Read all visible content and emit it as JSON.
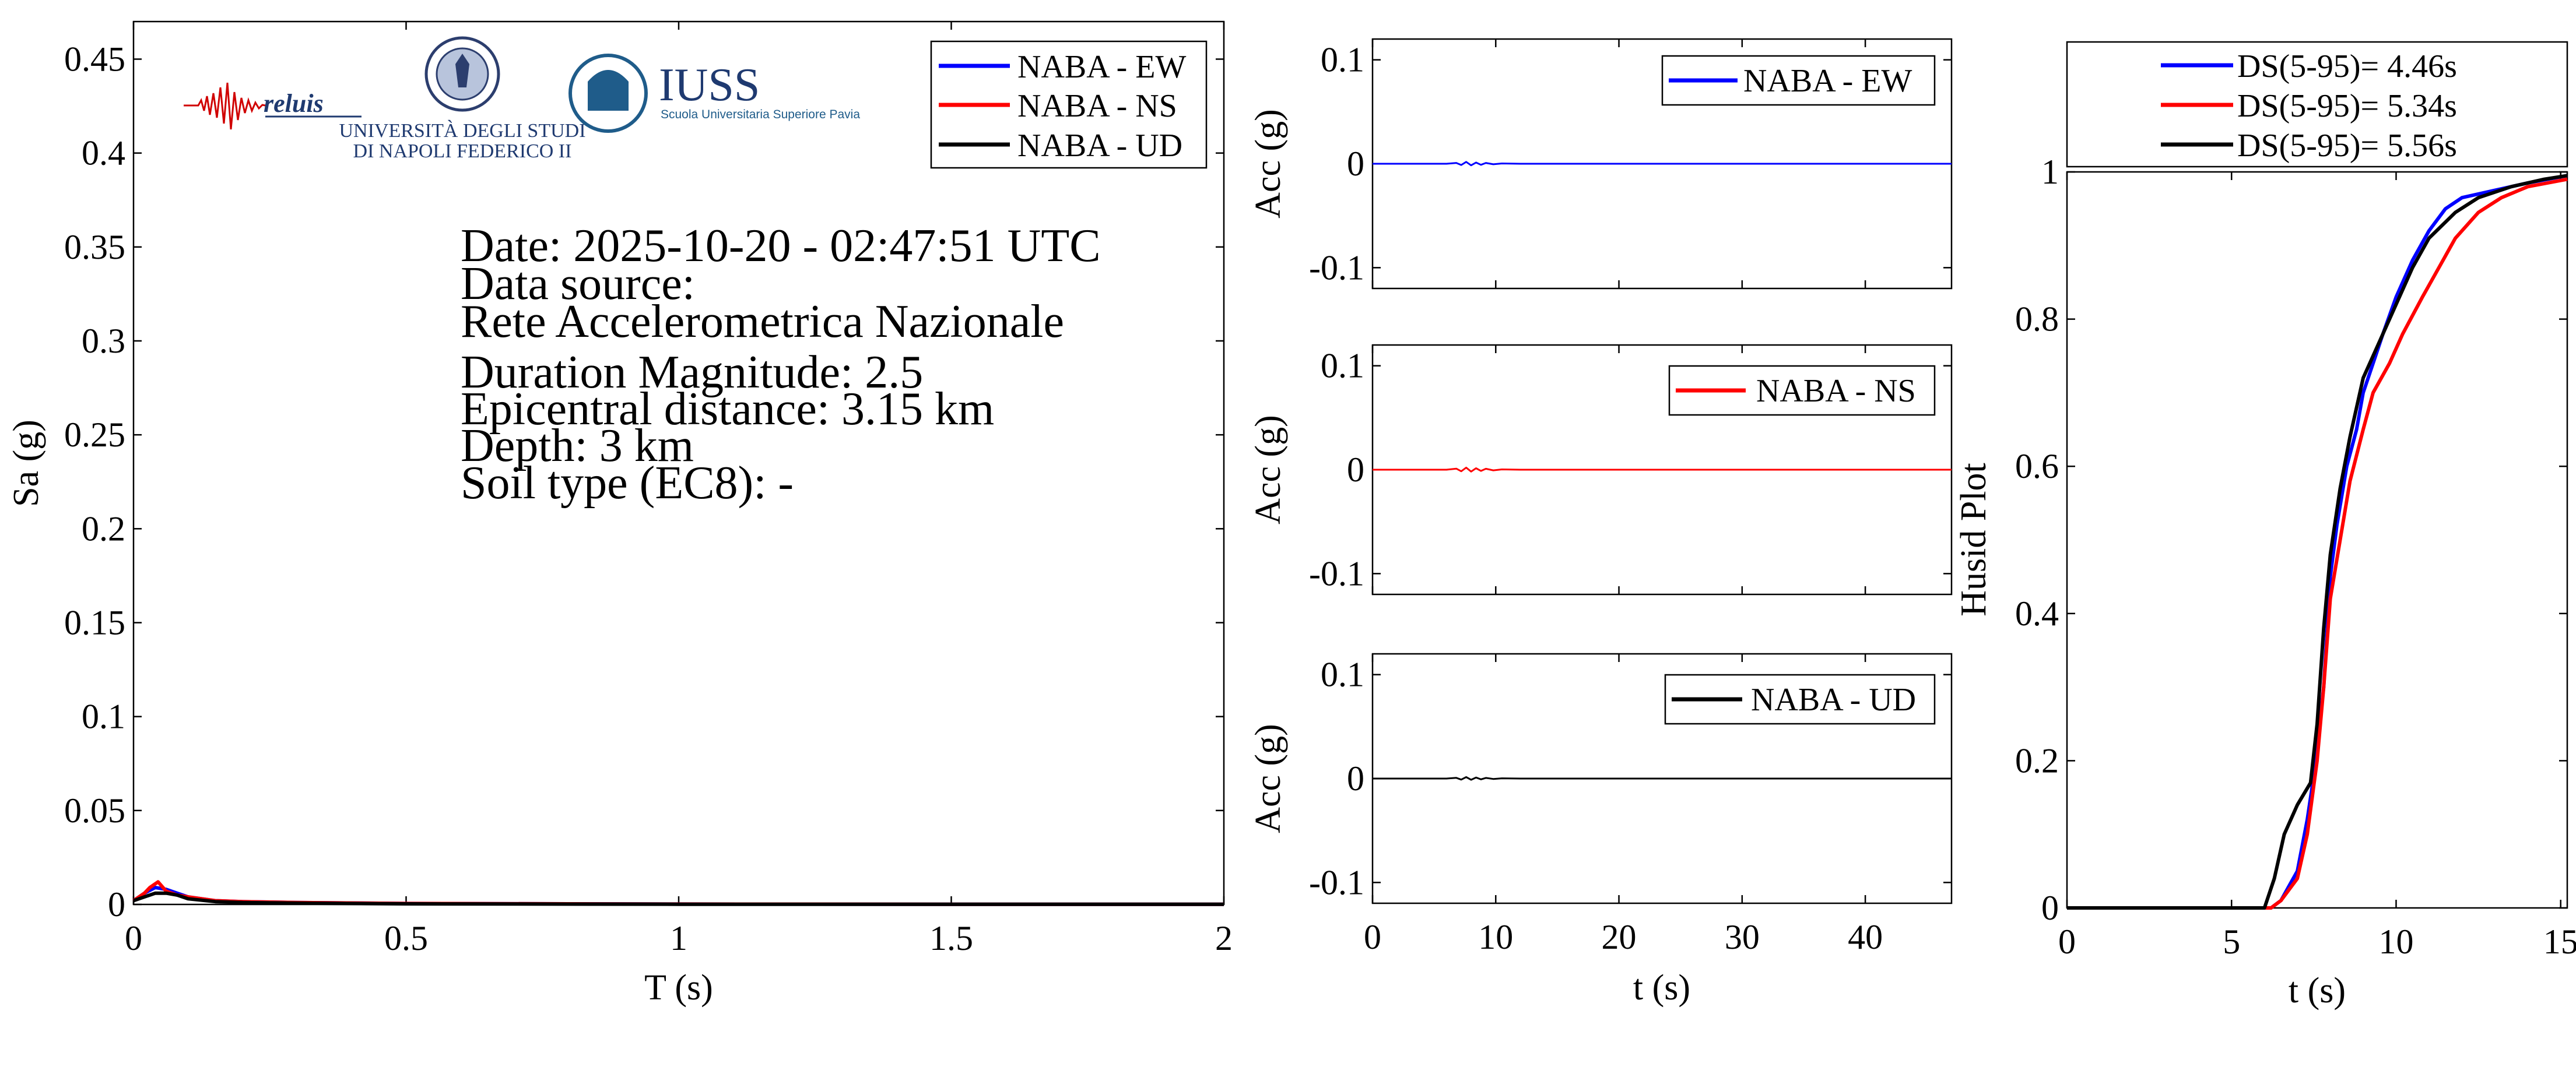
{
  "colors": {
    "ew": "#0000ff",
    "ns": "#ff0000",
    "ud": "#000000",
    "axis": "#000000"
  },
  "logos": {
    "reluis": "reluis",
    "unina_line1": "UNIVERSITÀ DEGLI STUDI",
    "unina_line2": "DI NAPOLI FEDERICO II",
    "iuss_title": "IUSS",
    "iuss_subtitle": "Scuola Universitaria Superiore Pavia"
  },
  "info": {
    "date": "Date: 2025-10-20 - 02:47:51 UTC",
    "source_label": "Data source:",
    "source_value": "Rete Accelerometrica Nazionale",
    "magnitude": "Duration Magnitude: 2.5",
    "distance": "Epicentral distance: 3.15 km",
    "depth": "Depth: 3 km",
    "soil": "Soil type (EC8): -"
  },
  "chart_data": [
    {
      "type": "line",
      "id": "spectrum",
      "xlabel": "T (s)",
      "ylabel": "Sa (g)",
      "xlim": [
        0,
        2
      ],
      "ylim": [
        0,
        0.47
      ],
      "xticks": [
        0,
        0.5,
        1,
        1.5,
        2
      ],
      "xtick_labels": [
        "0",
        "0.5",
        "1",
        "1.5",
        "2"
      ],
      "yticks": [
        0,
        0.05,
        0.1,
        0.15,
        0.2,
        0.25,
        0.3,
        0.35,
        0.4,
        0.45
      ],
      "ytick_labels": [
        "0",
        "0.05",
        "0.1",
        "0.15",
        "0.2",
        "0.25",
        "0.3",
        "0.35",
        "0.4",
        "0.45"
      ],
      "legend": "top-right",
      "series": [
        {
          "name": "NABA - EW",
          "color": "#0000ff",
          "x": [
            0,
            0.02,
            0.04,
            0.06,
            0.08,
            0.1,
            0.15,
            0.2,
            0.3,
            0.5,
            1,
            1.5,
            2
          ],
          "y": [
            0.002,
            0.006,
            0.009,
            0.008,
            0.006,
            0.004,
            0.002,
            0.0015,
            0.001,
            0.0005,
            0.0002,
            0.0001,
            0.0001
          ]
        },
        {
          "name": "NABA - NS",
          "color": "#ff0000",
          "x": [
            0,
            0.02,
            0.03,
            0.045,
            0.06,
            0.08,
            0.1,
            0.15,
            0.2,
            0.3,
            0.5,
            1,
            1.5,
            2
          ],
          "y": [
            0.002,
            0.006,
            0.009,
            0.012,
            0.007,
            0.005,
            0.004,
            0.002,
            0.0015,
            0.001,
            0.0005,
            0.0002,
            0.0001,
            0.0001
          ]
        },
        {
          "name": "NABA - UD",
          "color": "#000000",
          "x": [
            0,
            0.02,
            0.04,
            0.06,
            0.08,
            0.1,
            0.15,
            0.2,
            0.3,
            0.5,
            1,
            1.5,
            2
          ],
          "y": [
            0.002,
            0.004,
            0.006,
            0.006,
            0.005,
            0.003,
            0.0015,
            0.001,
            0.0007,
            0.0003,
            0.0001,
            0.0001,
            0.0001
          ]
        }
      ]
    },
    {
      "type": "line",
      "id": "acc_ew",
      "xlabel": "",
      "ylabel": "Acc (g)",
      "xlim": [
        0,
        47
      ],
      "ylim": [
        -0.12,
        0.12
      ],
      "xticks": [
        0,
        10,
        20,
        30,
        40
      ],
      "yticks": [
        -0.1,
        0,
        0.1
      ],
      "ytick_labels": [
        "-0.1",
        "0",
        "0.1"
      ],
      "legend": "top-right",
      "series": [
        {
          "name": "NABA - EW",
          "color": "#0000ff",
          "x": [
            0,
            6,
            6.8,
            7.2,
            7.6,
            8.0,
            8.4,
            8.8,
            9.2,
            9.8,
            10.5,
            12,
            47
          ],
          "y": [
            0,
            0,
            0.0008,
            -0.0012,
            0.0018,
            -0.0015,
            0.0012,
            -0.001,
            0.0008,
            -0.0005,
            0.0003,
            0,
            0
          ]
        }
      ]
    },
    {
      "type": "line",
      "id": "acc_ns",
      "xlabel": "",
      "ylabel": "Acc (g)",
      "xlim": [
        0,
        47
      ],
      "ylim": [
        -0.12,
        0.12
      ],
      "xticks": [
        0,
        10,
        20,
        30,
        40
      ],
      "yticks": [
        -0.1,
        0,
        0.1
      ],
      "ytick_labels": [
        "-0.1",
        "0",
        "0.1"
      ],
      "legend": "top-right",
      "series": [
        {
          "name": "NABA - NS",
          "color": "#ff0000",
          "x": [
            0,
            6,
            6.8,
            7.2,
            7.6,
            8.0,
            8.4,
            8.8,
            9.2,
            9.8,
            10.5,
            12,
            47
          ],
          "y": [
            0,
            0,
            0.001,
            -0.0015,
            0.002,
            -0.0018,
            0.0014,
            -0.0012,
            0.0009,
            -0.0006,
            0.0003,
            0,
            0
          ]
        }
      ]
    },
    {
      "type": "line",
      "id": "acc_ud",
      "xlabel": "t (s)",
      "ylabel": "Acc (g)",
      "xlim": [
        0,
        47
      ],
      "ylim": [
        -0.12,
        0.12
      ],
      "xticks": [
        0,
        10,
        20,
        30,
        40
      ],
      "xtick_labels": [
        "0",
        "10",
        "20",
        "30",
        "40"
      ],
      "yticks": [
        -0.1,
        0,
        0.1
      ],
      "ytick_labels": [
        "-0.1",
        "0",
        "0.1"
      ],
      "legend": "top-right",
      "series": [
        {
          "name": "NABA - UD",
          "color": "#000000",
          "x": [
            0,
            6,
            6.8,
            7.2,
            7.6,
            8.0,
            8.4,
            8.8,
            9.2,
            9.8,
            10.5,
            12,
            47
          ],
          "y": [
            0,
            0,
            0.0007,
            -0.001,
            0.0014,
            -0.0012,
            0.001,
            -0.0008,
            0.0006,
            -0.0004,
            0.0002,
            0,
            0
          ]
        }
      ]
    },
    {
      "type": "line",
      "id": "husid",
      "xlabel": "t (s)",
      "ylabel": "Husid Plot",
      "xlim": [
        0,
        15.2
      ],
      "ylim": [
        0,
        1
      ],
      "xticks": [
        0,
        5,
        10,
        15
      ],
      "xtick_labels": [
        "0",
        "5",
        "10",
        "15"
      ],
      "yticks": [
        0,
        0.2,
        0.4,
        0.6,
        0.8,
        1
      ],
      "ytick_labels": [
        "0",
        "0.2",
        "0.4",
        "0.6",
        "0.8",
        "1"
      ],
      "legend": "top",
      "series": [
        {
          "name": "DS(5-95)= 4.46s",
          "color": "#0000ff",
          "x": [
            0,
            6.2,
            6.5,
            7.0,
            7.3,
            7.5,
            7.8,
            8.0,
            8.2,
            8.5,
            8.8,
            9.0,
            9.3,
            9.6,
            10.0,
            10.5,
            11.0,
            11.5,
            12.0,
            13.0,
            14.0,
            15.2
          ],
          "y": [
            0,
            0,
            0.01,
            0.05,
            0.12,
            0.18,
            0.3,
            0.45,
            0.52,
            0.6,
            0.65,
            0.7,
            0.74,
            0.78,
            0.83,
            0.88,
            0.92,
            0.95,
            0.965,
            0.975,
            0.985,
            0.995
          ]
        },
        {
          "name": "DS(5-95)= 5.34s",
          "color": "#ff0000",
          "x": [
            0,
            6.2,
            6.5,
            7.0,
            7.3,
            7.6,
            7.8,
            8.0,
            8.3,
            8.6,
            9.0,
            9.3,
            9.8,
            10.2,
            10.8,
            11.3,
            11.8,
            12.5,
            13.2,
            14.0,
            15.2
          ],
          "y": [
            0,
            0,
            0.01,
            0.04,
            0.1,
            0.2,
            0.3,
            0.42,
            0.5,
            0.58,
            0.65,
            0.7,
            0.74,
            0.78,
            0.83,
            0.87,
            0.91,
            0.945,
            0.965,
            0.98,
            0.99
          ]
        },
        {
          "name": "DS(5-95)= 5.56s",
          "color": "#000000",
          "x": [
            0,
            6.0,
            6.3,
            6.6,
            7.0,
            7.4,
            7.6,
            7.8,
            8.0,
            8.3,
            8.6,
            9.0,
            9.5,
            10.0,
            10.5,
            11.0,
            11.8,
            12.5,
            13.5,
            14.5,
            15.2
          ],
          "y": [
            0,
            0,
            0.04,
            0.1,
            0.14,
            0.17,
            0.25,
            0.38,
            0.48,
            0.57,
            0.64,
            0.72,
            0.77,
            0.82,
            0.87,
            0.91,
            0.945,
            0.965,
            0.98,
            0.99,
            0.995
          ]
        }
      ]
    }
  ]
}
